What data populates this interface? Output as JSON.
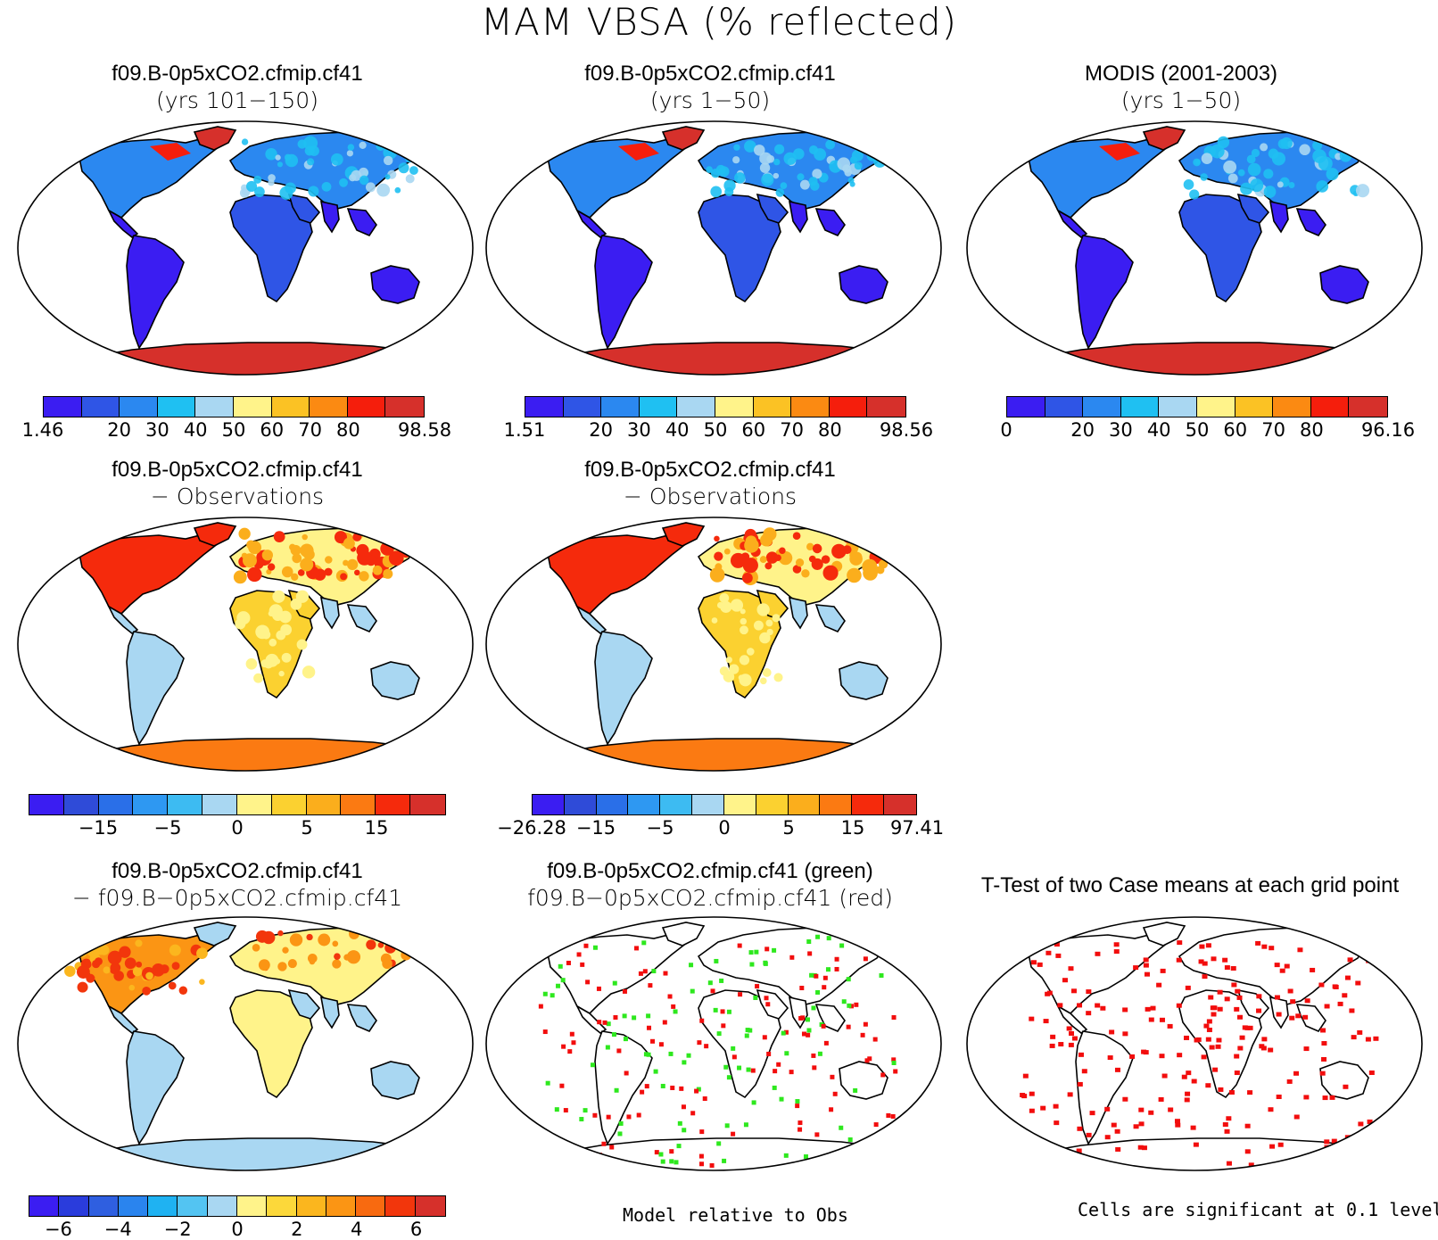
{
  "main_title": "MAM VBSA (% reflected)",
  "panels": [
    {
      "line1": "f09.B-0p5xCO2.cfmip.cf41",
      "line2": "(yrs 101−150)",
      "scheme": "abs"
    },
    {
      "line1": "f09.B-0p5xCO2.cfmip.cf41",
      "line2": "(yrs 1−50)",
      "scheme": "abs"
    },
    {
      "line1": "MODIS (2001-2003)",
      "line2": "(yrs 1−50)",
      "scheme": "abs"
    },
    {
      "line1": "f09.B-0p5xCO2.cfmip.cf41",
      "line2": "− Observations",
      "scheme": "diff"
    },
    {
      "line1": "f09.B-0p5xCO2.cfmip.cf41",
      "line2": "− Observations",
      "scheme": "diff"
    },
    {
      "line1": "f09.B-0p5xCO2.cfmip.cf41",
      "line2": "− f09.B−0p5xCO2.cfmip.cf41",
      "scheme": "diff2"
    },
    {
      "line1": "f09.B-0p5xCO2.cfmip.cf41 (green)",
      "line2": "f09.B−0p5xCO2.cfmip.cf41 (red)",
      "scheme": "greenred"
    },
    {
      "line1": "T-Test of two Case means at each grid point",
      "line2": "",
      "scheme": "ttest"
    }
  ],
  "colors": {
    "abs": [
      "#3b1df2",
      "#2f55e6",
      "#2b88f0",
      "#1fc0f2",
      "#a9d7f2",
      "#fff38a",
      "#fbc224",
      "#fb8a12",
      "#f51e0c",
      "#d6302b"
    ],
    "diff": [
      "#3b1df2",
      "#2f4bd8",
      "#2a6fe8",
      "#2e98f2",
      "#3dbbf2",
      "#a9d7f2",
      "#fff38a",
      "#fbd130",
      "#fbae1c",
      "#fb7a12",
      "#f52a0c",
      "#d6302b"
    ],
    "diff5": [
      "#3b1df2",
      "#2f4bd8",
      "#2a6fe8",
      "#2e98f2",
      "#3dbbf2",
      "#a9d7f2",
      "#fff38a",
      "#fbd130",
      "#fbae1c",
      "#fb7a12",
      "#f52a0c",
      "#d6302b"
    ],
    "diff2": [
      "#3b1df2",
      "#2a3cdc",
      "#2f5fe0",
      "#2a84ee",
      "#1fb2f2",
      "#53c4f2",
      "#a9d7f2",
      "#fff38a",
      "#fcd83a",
      "#fbb61e",
      "#fb9514",
      "#f86a10",
      "#f2360c",
      "#d6302b"
    ],
    "land_light": "#a9d7f2",
    "land_yellow": "#fff38a",
    "green": "#2ee81e",
    "red": "#f20d0d"
  },
  "colorbars": [
    {
      "labels": [
        {
          "text": "1.46",
          "i": 0
        },
        {
          "text": "20",
          "i": 2
        },
        {
          "text": "30",
          "i": 3
        },
        {
          "text": "40",
          "i": 4
        },
        {
          "text": "50",
          "i": 5
        },
        {
          "text": "60",
          "i": 6
        },
        {
          "text": "70",
          "i": 7
        },
        {
          "text": "80",
          "i": 8
        },
        {
          "text": "98.58",
          "i": 10
        }
      ]
    },
    {
      "labels": [
        {
          "text": "1.51",
          "i": 0
        },
        {
          "text": "20",
          "i": 2
        },
        {
          "text": "30",
          "i": 3
        },
        {
          "text": "40",
          "i": 4
        },
        {
          "text": "50",
          "i": 5
        },
        {
          "text": "60",
          "i": 6
        },
        {
          "text": "70",
          "i": 7
        },
        {
          "text": "80",
          "i": 8
        },
        {
          "text": "98.56",
          "i": 10
        }
      ]
    },
    {
      "labels": [
        {
          "text": "0",
          "i": 0
        },
        {
          "text": "20",
          "i": 2
        },
        {
          "text": "30",
          "i": 3
        },
        {
          "text": "40",
          "i": 4
        },
        {
          "text": "50",
          "i": 5
        },
        {
          "text": "60",
          "i": 6
        },
        {
          "text": "70",
          "i": 7
        },
        {
          "text": "80",
          "i": 8
        },
        {
          "text": "96.16",
          "i": 10
        }
      ]
    },
    {
      "labels": [
        {
          "text": "−15",
          "i": 2
        },
        {
          "text": "−5",
          "i": 4
        },
        {
          "text": "0",
          "i": 6
        },
        {
          "text": "5",
          "i": 8
        },
        {
          "text": "15",
          "i": 10
        }
      ]
    },
    {
      "labels": [
        {
          "text": "−26.28",
          "i": 0
        },
        {
          "text": "−15",
          "i": 2
        },
        {
          "text": "−5",
          "i": 4
        },
        {
          "text": "0",
          "i": 6
        },
        {
          "text": "5",
          "i": 8
        },
        {
          "text": "15",
          "i": 10
        },
        {
          "text": "97.41",
          "i": 12
        }
      ]
    },
    {
      "labels": [
        {
          "text": "−6",
          "i": 1
        },
        {
          "text": "−4",
          "i": 3
        },
        {
          "text": "−2",
          "i": 5
        },
        {
          "text": "0",
          "i": 7
        },
        {
          "text": "2",
          "i": 9
        },
        {
          "text": "4",
          "i": 11
        },
        {
          "text": "6",
          "i": 13
        }
      ]
    }
  ],
  "notes": {
    "model_relative": "Model relative to Obs",
    "significance": "Cells are significant at 0.1 level"
  }
}
